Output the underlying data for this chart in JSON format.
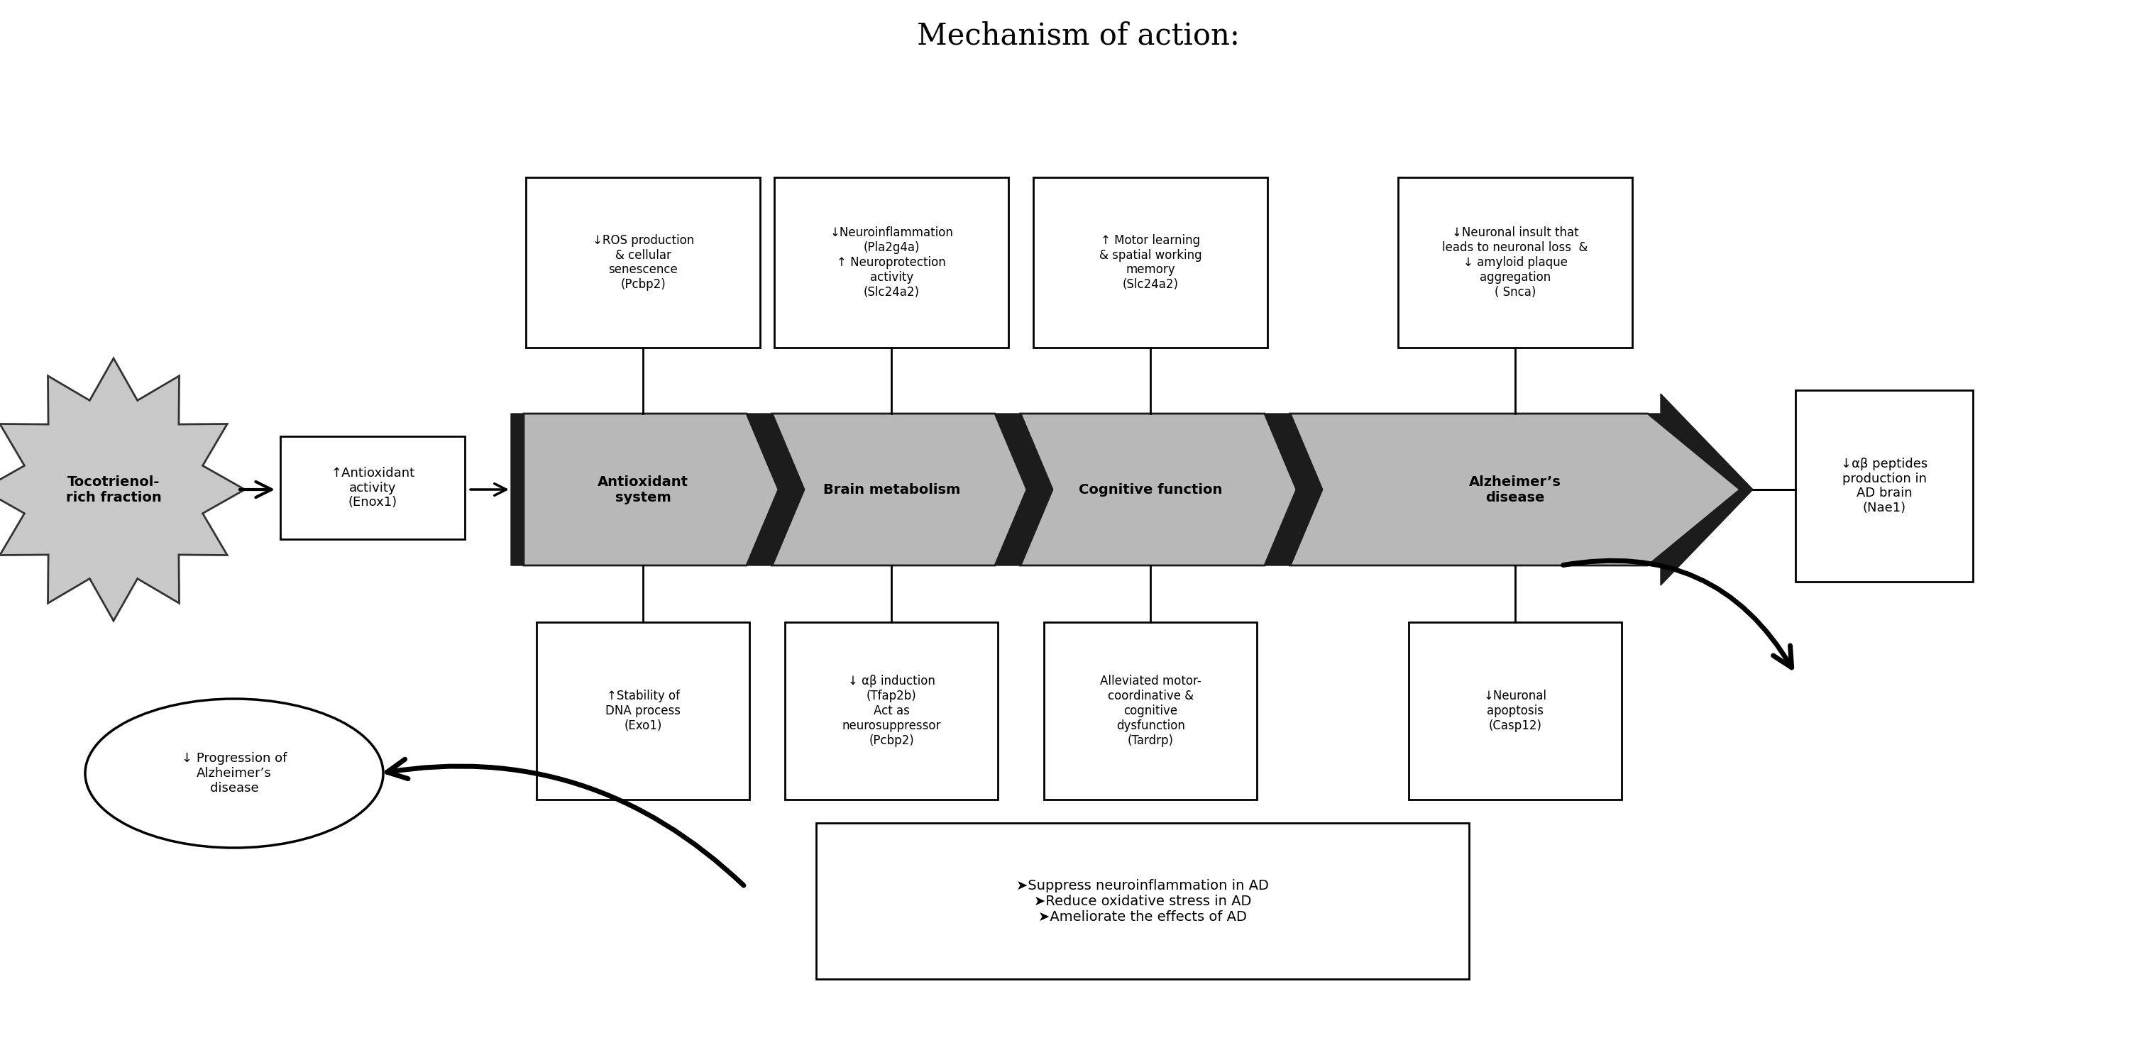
{
  "title": "Mechanism of action:",
  "title_fontsize": 28,
  "bg_color": "#ffffff",
  "pipeline_labels": [
    "Antioxidant\nsystem",
    "Brain metabolism",
    "Cognitive function",
    "Alzheimer’s\ndisease"
  ],
  "tocotrienol_label": "Tocotrienol-\nrich fraction",
  "antioxidant_box_label": "↑Antioxidant\nactivity\n(Enox1)",
  "top_boxes": [
    "↓ROS production\n& cellular\nsenescence\n(Pcbp2)",
    "↓Neuroinflammation\n(Pla2g4a)\n↑ Neuroprotection\nactivity\n(Slc24a2)",
    "↑ Motor learning\n& spatial working\nmemory\n(Slc24a2)",
    "↓Neuronal insult that\nleads to neuronal loss  &\n↓ amyloid plaque\naggregation\n( Snca)"
  ],
  "bottom_boxes": [
    "↑Stability of\nDNA process\n(Exo1)",
    "↓ αβ induction\n(Tfap2b)\nAct as\nneurosuppressor\n(Pcbp2)",
    "Alleviated motor-\ncoordinative &\ncognitive\ndysfunction\n(Tardrp)",
    "↓Neuronal\napoptosis\n(Casp12)"
  ],
  "right_box_label": "↓αβ peptides\nproduction in\nAD brain\n(Nae1)",
  "ellipse_label": "↓ Progression of\nAlzheimer’s\ndisease",
  "summary_box_label": "➤Suppress neuroinflammation in AD\n➤Reduce oxidative stress in AD\n➤Ameliorate the effects of AD"
}
